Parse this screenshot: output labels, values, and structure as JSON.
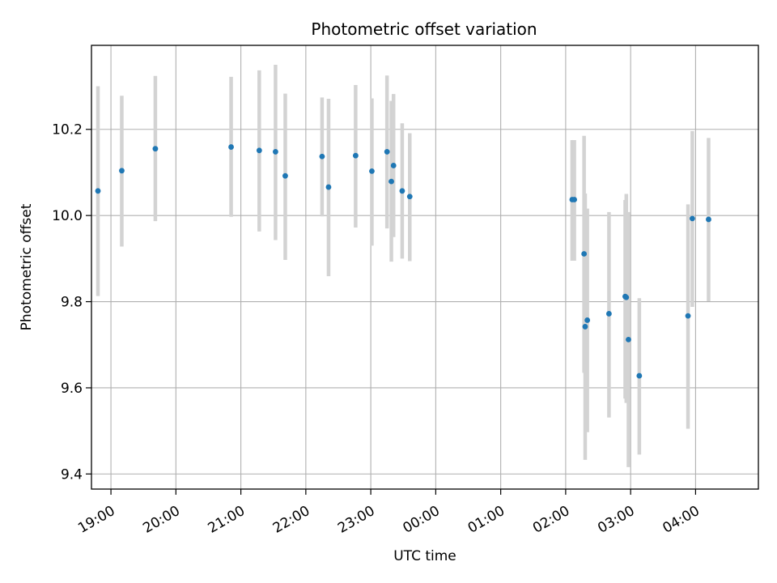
{
  "chart_data": {
    "type": "scatter",
    "title": "Photometric offset variation",
    "xlabel": "UTC time",
    "ylabel": "Photometric offset",
    "grid": true,
    "x_unit": "UTC",
    "xlim": [
      "18:42",
      "04:58"
    ],
    "ylim": [
      9.365,
      10.395
    ],
    "x_ticks": [
      "19:00",
      "20:00",
      "21:00",
      "22:00",
      "23:00",
      "00:00",
      "01:00",
      "02:00",
      "03:00",
      "04:00"
    ],
    "y_ticks": [
      9.4,
      9.6,
      9.8,
      10.0,
      10.2
    ],
    "y_tick_labels": [
      "9.4",
      "9.6",
      "9.8",
      "10.0",
      "10.2"
    ],
    "marker_color": "#1f77b4",
    "errorbar_color": "#d3d3d3",
    "points": [
      {
        "x": "18:48",
        "y": 10.057,
        "ylow": 9.813,
        "yhigh": 10.3
      },
      {
        "x": "19:10",
        "y": 10.104,
        "ylow": 9.928,
        "yhigh": 10.278
      },
      {
        "x": "19:41",
        "y": 10.155,
        "ylow": 9.987,
        "yhigh": 10.324
      },
      {
        "x": "20:51",
        "y": 10.159,
        "ylow": 9.997,
        "yhigh": 10.322
      },
      {
        "x": "21:17",
        "y": 10.151,
        "ylow": 9.963,
        "yhigh": 10.337
      },
      {
        "x": "21:32",
        "y": 10.148,
        "ylow": 9.943,
        "yhigh": 10.35
      },
      {
        "x": "21:41",
        "y": 10.092,
        "ylow": 9.897,
        "yhigh": 10.283
      },
      {
        "x": "22:15",
        "y": 10.137,
        "ylow": 9.998,
        "yhigh": 10.274
      },
      {
        "x": "22:21",
        "y": 10.066,
        "ylow": 9.859,
        "yhigh": 10.271
      },
      {
        "x": "22:46",
        "y": 10.139,
        "ylow": 9.972,
        "yhigh": 10.303
      },
      {
        "x": "23:01",
        "y": 10.103,
        "ylow": 9.93,
        "yhigh": 10.272
      },
      {
        "x": "23:15",
        "y": 10.148,
        "ylow": 9.97,
        "yhigh": 10.325
      },
      {
        "x": "23:19",
        "y": 10.079,
        "ylow": 9.893,
        "yhigh": 10.266
      },
      {
        "x": "23:21",
        "y": 10.116,
        "ylow": 9.95,
        "yhigh": 10.282
      },
      {
        "x": "23:29",
        "y": 10.057,
        "ylow": 9.9,
        "yhigh": 10.214
      },
      {
        "x": "23:36",
        "y": 10.044,
        "ylow": 9.894,
        "yhigh": 10.191
      },
      {
        "x": "02:06",
        "y": 10.037,
        "ylow": 9.895,
        "yhigh": 10.175
      },
      {
        "x": "02:08",
        "y": 10.037,
        "ylow": 9.895,
        "yhigh": 10.175
      },
      {
        "x": "02:17",
        "y": 9.911,
        "ylow": 9.635,
        "yhigh": 10.185
      },
      {
        "x": "02:18",
        "y": 9.742,
        "ylow": 9.433,
        "yhigh": 10.051
      },
      {
        "x": "02:20",
        "y": 9.757,
        "ylow": 9.497,
        "yhigh": 10.016
      },
      {
        "x": "02:40",
        "y": 9.772,
        "ylow": 9.531,
        "yhigh": 10.008
      },
      {
        "x": "02:55",
        "y": 9.812,
        "ylow": 9.575,
        "yhigh": 10.036
      },
      {
        "x": "02:56",
        "y": 9.81,
        "ylow": 9.565,
        "yhigh": 10.05
      },
      {
        "x": "02:58",
        "y": 9.712,
        "ylow": 9.416,
        "yhigh": 10.008
      },
      {
        "x": "03:08",
        "y": 9.628,
        "ylow": 9.445,
        "yhigh": 9.808
      },
      {
        "x": "03:53",
        "y": 9.767,
        "ylow": 9.505,
        "yhigh": 10.026
      },
      {
        "x": "03:57",
        "y": 9.993,
        "ylow": 9.788,
        "yhigh": 10.196
      },
      {
        "x": "04:12",
        "y": 9.991,
        "ylow": 9.801,
        "yhigh": 10.18
      }
    ]
  }
}
